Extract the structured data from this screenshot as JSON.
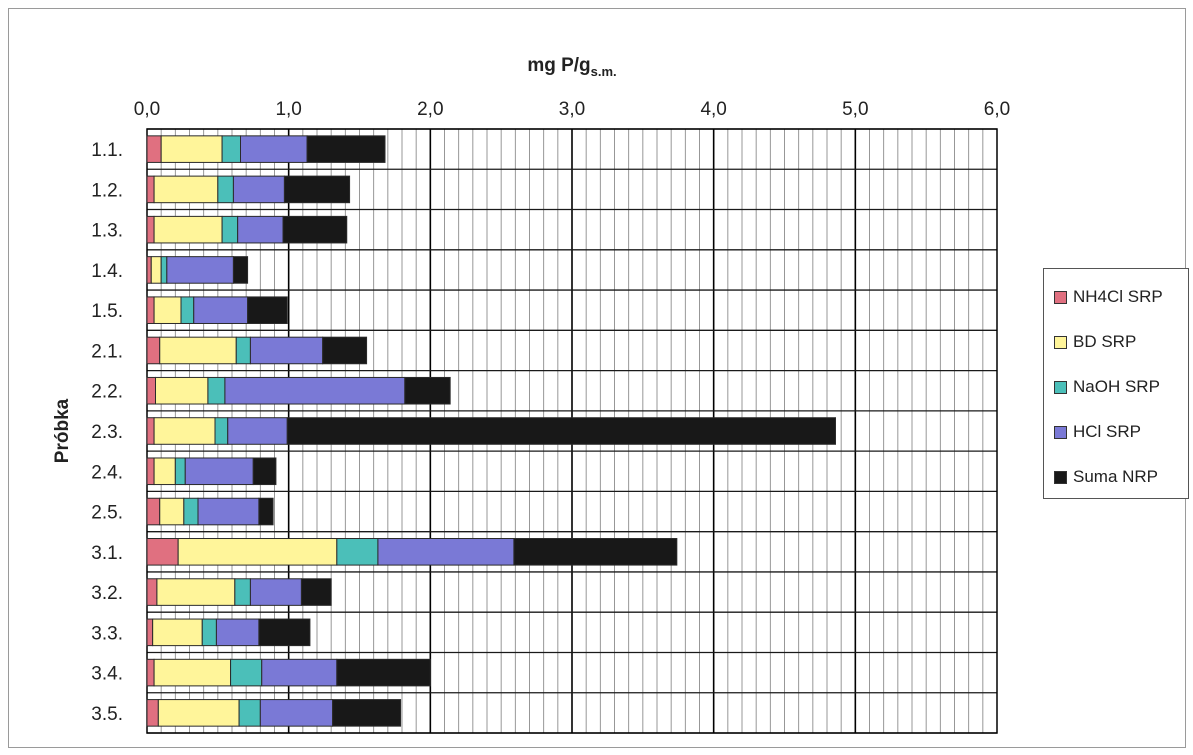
{
  "chart_data": {
    "type": "bar",
    "orientation": "horizontal",
    "stacked": true,
    "title": "",
    "xlabel_main": "mg P/g",
    "xlabel_sub": "s.m.",
    "ylabel": "Próbka",
    "xlim": [
      0,
      6
    ],
    "x_ticks": [
      "0,0",
      "1,0",
      "2,0",
      "3,0",
      "4,0",
      "5,0",
      "6,0"
    ],
    "x_tick_values": [
      0,
      1,
      2,
      3,
      4,
      5,
      6
    ],
    "grid": true,
    "legend_position": "right",
    "categories": [
      "1.1.",
      "1.2.",
      "1.3.",
      "1.4.",
      "1.5.",
      "2.1.",
      "2.2.",
      "2.3.",
      "2.4.",
      "2.5.",
      "3.1.",
      "3.2.",
      "3.3.",
      "3.4.",
      "3.5."
    ],
    "series": [
      {
        "name": "NH4Cl SRP",
        "color": "#e07080",
        "values": [
          0.1,
          0.05,
          0.05,
          0.03,
          0.05,
          0.09,
          0.06,
          0.05,
          0.05,
          0.09,
          0.22,
          0.07,
          0.04,
          0.05,
          0.08
        ]
      },
      {
        "name": "BD SRP",
        "color": "#fff59a",
        "values": [
          0.43,
          0.45,
          0.48,
          0.07,
          0.19,
          0.54,
          0.37,
          0.43,
          0.15,
          0.17,
          1.12,
          0.55,
          0.35,
          0.54,
          0.57
        ]
      },
      {
        "name": "NaOH SRP",
        "color": "#4bbfb9",
        "values": [
          0.13,
          0.11,
          0.11,
          0.04,
          0.09,
          0.1,
          0.12,
          0.09,
          0.07,
          0.1,
          0.29,
          0.11,
          0.1,
          0.22,
          0.15
        ]
      },
      {
        "name": "HCl SRP",
        "color": "#7a79d6",
        "values": [
          0.47,
          0.36,
          0.32,
          0.47,
          0.38,
          0.51,
          1.27,
          0.42,
          0.48,
          0.43,
          0.96,
          0.36,
          0.3,
          0.53,
          0.51
        ]
      },
      {
        "name": "Suma NRP",
        "color": "#181818",
        "values": [
          0.55,
          0.46,
          0.45,
          0.1,
          0.28,
          0.31,
          0.32,
          3.87,
          0.16,
          0.1,
          1.15,
          0.21,
          0.36,
          0.66,
          0.48
        ]
      }
    ]
  }
}
